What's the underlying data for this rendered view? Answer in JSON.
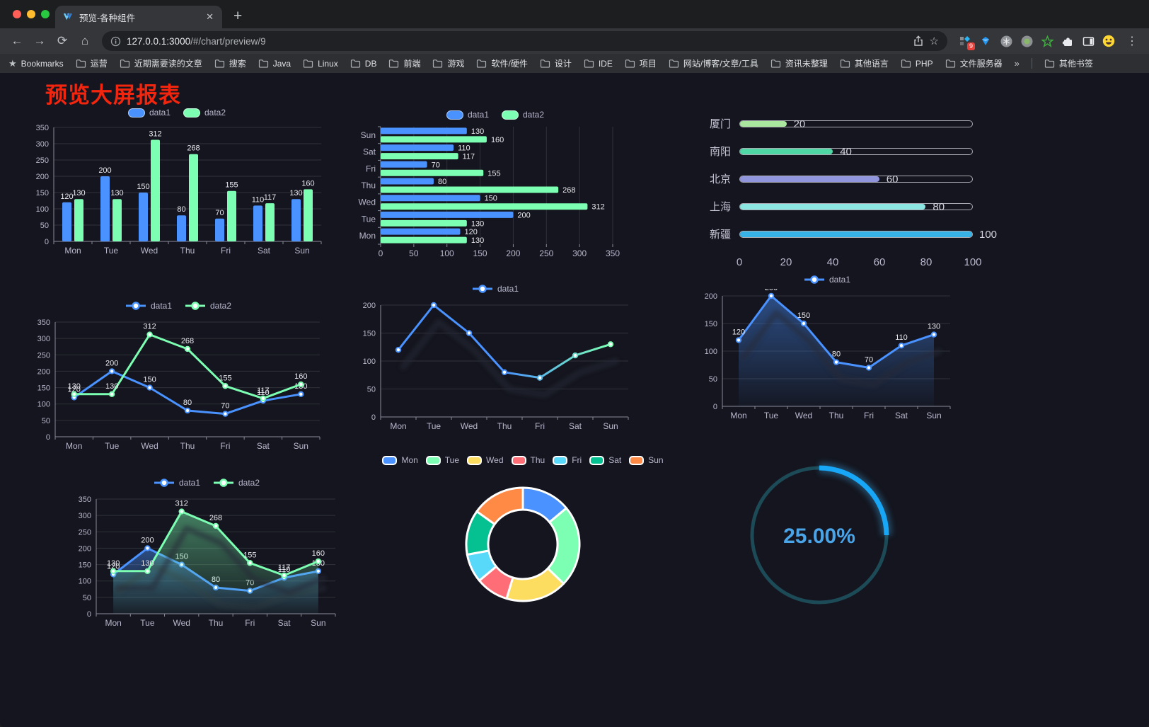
{
  "browser": {
    "tab_title": "预览-各种组件",
    "tab_close": "✕",
    "new_tab": "+",
    "nav": {
      "back": "←",
      "forward": "→",
      "reload": "⟳",
      "home": "⌂"
    },
    "url_host": "127.0.0.1:3000",
    "url_path": "/#/chart/preview/9",
    "star": "☆",
    "extensions_badge": "9",
    "menu": "⋮",
    "bookmarks_label": "Bookmarks",
    "bookmarks": [
      "运营",
      "近期需要读的文章",
      "搜索",
      "Java",
      "Linux",
      "DB",
      "前端",
      "游戏",
      "软件/硬件",
      "设计",
      "IDE",
      "项目",
      "网站/博客/文章/工具",
      "资讯未整理",
      "其他语言",
      "PHP",
      "文件服务器"
    ],
    "bookmarks_overflow": "»",
    "other_bookmarks": "其他书签"
  },
  "page": {
    "title": "预览大屏报表",
    "title_color": "#f2250f",
    "background": "#14151e"
  },
  "chart_data": [
    {
      "id": "bar-vertical",
      "type": "bar",
      "categories": [
        "Mon",
        "Tue",
        "Wed",
        "Thu",
        "Fri",
        "Sat",
        "Sun"
      ],
      "series": [
        {
          "name": "data1",
          "color": "#4992ff",
          "values": [
            120,
            200,
            150,
            80,
            70,
            110,
            130
          ]
        },
        {
          "name": "data2",
          "color": "#7cffb2",
          "values": [
            130,
            130,
            312,
            268,
            155,
            117,
            160
          ]
        }
      ],
      "ylim": [
        0,
        350
      ],
      "ytick": 50,
      "labels": true,
      "legend_position": "top",
      "grid": true
    },
    {
      "id": "bar-horizontal",
      "type": "hbar",
      "categories": [
        "Mon",
        "Tue",
        "Wed",
        "Thu",
        "Fri",
        "Sat",
        "Sun"
      ],
      "series": [
        {
          "name": "data1",
          "color": "#4992ff",
          "values": [
            120,
            200,
            150,
            80,
            70,
            110,
            130
          ]
        },
        {
          "name": "data2",
          "color": "#7cffb2",
          "values": [
            130,
            130,
            312,
            268,
            155,
            117,
            160
          ]
        }
      ],
      "xlim": [
        0,
        350
      ],
      "xtick": 50,
      "labels": true,
      "legend_position": "top",
      "grid": true
    },
    {
      "id": "progress-bars",
      "type": "bar",
      "subtype": "progress-list",
      "max": 100,
      "ticks": [
        0,
        20,
        40,
        60,
        80,
        100
      ],
      "items": [
        {
          "label": "厦门",
          "value": 20,
          "color": "#a9e79f"
        },
        {
          "label": "南阳",
          "value": 40,
          "color": "#4fd7a6"
        },
        {
          "label": "北京",
          "value": 60,
          "color": "#9095dc"
        },
        {
          "label": "上海",
          "value": 80,
          "color": "#8ce6e2"
        },
        {
          "label": "新疆",
          "value": 100,
          "color": "#38b3e8"
        }
      ]
    },
    {
      "id": "line-basic",
      "type": "line",
      "categories": [
        "Mon",
        "Tue",
        "Wed",
        "Thu",
        "Fri",
        "Sat",
        "Sun"
      ],
      "series": [
        {
          "name": "data1",
          "color": "#4992ff",
          "values": [
            120,
            200,
            150,
            80,
            70,
            110,
            130
          ]
        },
        {
          "name": "data2",
          "color": "#7cffb2",
          "values": [
            130,
            130,
            312,
            268,
            155,
            117,
            160
          ]
        }
      ],
      "ylim": [
        0,
        350
      ],
      "ytick": 50,
      "labels": true,
      "shadow": false,
      "grid": true
    },
    {
      "id": "line-gradient",
      "type": "line",
      "categories": [
        "Mon",
        "Tue",
        "Wed",
        "Thu",
        "Fri",
        "Sat",
        "Sun"
      ],
      "series": [
        {
          "name": "data1",
          "color_start": "#4992ff",
          "color_end": "#7cffb2",
          "values": [
            120,
            200,
            150,
            80,
            70,
            110,
            130
          ]
        }
      ],
      "ylim": [
        0,
        200
      ],
      "ytick": 50,
      "labels": false,
      "shadow": true,
      "grid": true
    },
    {
      "id": "line-area",
      "type": "area",
      "categories": [
        "Mon",
        "Tue",
        "Wed",
        "Thu",
        "Fri",
        "Sat",
        "Sun"
      ],
      "series": [
        {
          "name": "data1",
          "color": "#4992ff",
          "area": true,
          "values": [
            120,
            200,
            150,
            80,
            70,
            110,
            130
          ]
        }
      ],
      "ylim": [
        0,
        200
      ],
      "ytick": 50,
      "labels": true,
      "shadow": true,
      "grid": true
    },
    {
      "id": "line-area-double",
      "type": "area",
      "categories": [
        "Mon",
        "Tue",
        "Wed",
        "Thu",
        "Fri",
        "Sat",
        "Sun"
      ],
      "series": [
        {
          "name": "data1",
          "color": "#4992ff",
          "area": true,
          "values": [
            120,
            200,
            150,
            80,
            70,
            110,
            130
          ]
        },
        {
          "name": "data2",
          "color": "#7cffb2",
          "area": true,
          "values": [
            130,
            130,
            312,
            268,
            155,
            117,
            160
          ]
        }
      ],
      "ylim": [
        0,
        350
      ],
      "ytick": 50,
      "labels": true,
      "shadow": true,
      "grid": true
    },
    {
      "id": "donut",
      "type": "pie",
      "inner_radius": 49,
      "outer_radius": 80,
      "items": [
        {
          "label": "Mon",
          "value": 120,
          "color": "#4992ff"
        },
        {
          "label": "Tue",
          "value": 200,
          "color": "#7cffb2"
        },
        {
          "label": "Wed",
          "value": 150,
          "color": "#fddd60"
        },
        {
          "label": "Thu",
          "value": 80,
          "color": "#ff6e76"
        },
        {
          "label": "Fri",
          "value": 70,
          "color": "#58d9f9"
        },
        {
          "label": "Sat",
          "value": 110,
          "color": "#05c091"
        },
        {
          "label": "Sun",
          "value": 130,
          "color": "#ff8a45"
        }
      ]
    },
    {
      "id": "gauge",
      "type": "gauge",
      "value": 25,
      "max": 100,
      "label": "25.00%",
      "color": "#17a7f6",
      "track_color": "#1d4a57",
      "text_color": "#4aa4e8"
    }
  ]
}
